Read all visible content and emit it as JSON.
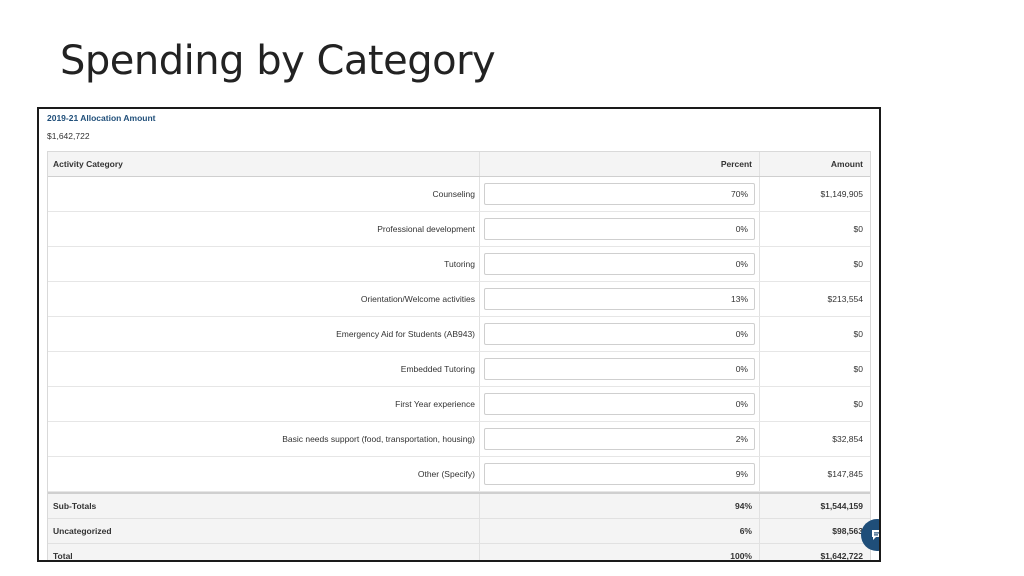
{
  "slide": {
    "title": "Spending by Category"
  },
  "allocation": {
    "label": "2019-21 Allocation Amount",
    "value": "$1,642,722"
  },
  "table": {
    "headers": {
      "category": "Activity Category",
      "percent": "Percent",
      "amount": "Amount"
    },
    "rows": [
      {
        "category": "Counseling",
        "percent": "70%",
        "amount": "$1,149,905"
      },
      {
        "category": "Professional development",
        "percent": "0%",
        "amount": "$0"
      },
      {
        "category": "Tutoring",
        "percent": "0%",
        "amount": "$0"
      },
      {
        "category": "Orientation/Welcome activities",
        "percent": "13%",
        "amount": "$213,554"
      },
      {
        "category": "Emergency Aid for Students (AB943)",
        "percent": "0%",
        "amount": "$0"
      },
      {
        "category": "Embedded Tutoring",
        "percent": "0%",
        "amount": "$0"
      },
      {
        "category": "First Year experience",
        "percent": "0%",
        "amount": "$0"
      },
      {
        "category": "Basic needs support (food, transportation, housing)",
        "percent": "2%",
        "amount": "$32,854"
      },
      {
        "category": "Other (Specify)",
        "percent": "9%",
        "amount": "$147,845"
      }
    ],
    "footer": [
      {
        "label": "Sub-Totals",
        "percent": "94%",
        "amount": "$1,544,159"
      },
      {
        "label": "Uncategorized",
        "percent": "6%",
        "amount": "$98,563"
      },
      {
        "label": "Total",
        "percent": "100%",
        "amount": "$1,642,722"
      }
    ]
  },
  "chat": {
    "icon": "chat-icon",
    "color": "#1f4e79"
  },
  "colors": {
    "accent": "#1f4e79",
    "header_bg": "#f4f4f4",
    "border": "#d9d9d9"
  }
}
